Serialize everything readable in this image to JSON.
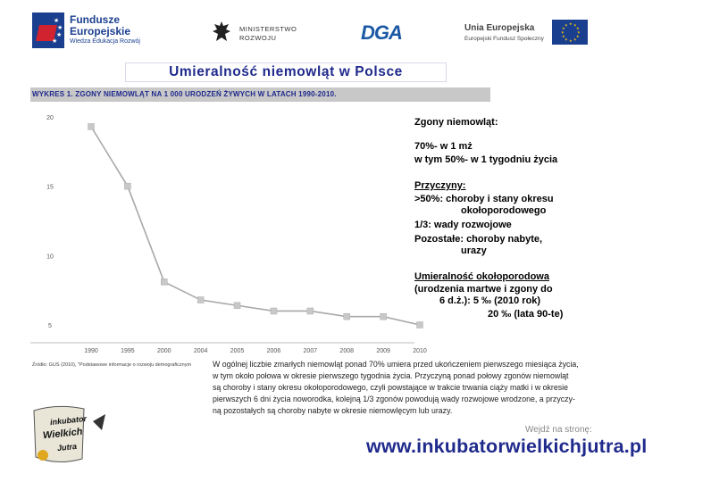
{
  "header": {
    "fe_line1": "Fundusze",
    "fe_line2": "Europejskie",
    "fe_line3": "Wiedza Edukacja Rozwój",
    "ministry_line1": "MINISTERSTWO",
    "ministry_line2": "ROZWOJU",
    "dga": "DGA",
    "ue_line1": "Unia Europejska",
    "ue_line2": "Europejski Fundusz Społeczny"
  },
  "slide_title": "Umieralność niemowląt w Polsce",
  "chart_data": {
    "type": "line",
    "title": "WYKRES 1. ZGONY NIEMOWLĄT NA 1 000 URODZEŃ ŻYWYCH W LATACH 1990-2010.",
    "categories": [
      "1990",
      "1995",
      "2000",
      "2004",
      "2005",
      "2006",
      "2007",
      "2008",
      "2009",
      "2010"
    ],
    "series": [
      {
        "values": [
          19.3,
          15.0,
          8.1,
          6.8,
          6.4,
          6.0,
          6.0,
          5.6,
          5.6,
          5.0
        ]
      }
    ],
    "ylim": [
      5,
      20
    ],
    "yticks": [
      "20",
      "15",
      "10",
      "5"
    ],
    "grid": false,
    "line_color": "#a8a8a8",
    "marker_color": "#c8c8c8"
  },
  "source": "Źródło: GUS (2010), \"Podstawowe informacje o rozwoju demograficznym",
  "right_panel": {
    "zgony_head": "Zgony niemowląt:",
    "zgony_1": "70%- w 1 mż",
    "zgony_2": "w tym 50%- w 1 tygodniu życia",
    "przyczyny_head": "Przyczyny:",
    "przyczyny_1": ">50%: choroby i stany okresu",
    "przyczyny_2": "okołoporodowego",
    "przyczyny_3": "1/3: wady rozwojowe",
    "przyczyny_4": "Pozostałe: choroby nabyte,",
    "przyczyny_5": "urazy",
    "umier_head": "Umieralność okołoporodowa",
    "umier_1": "(urodzenia martwe i zgony do",
    "umier_2": "6 d.ż.): 5 ‰ (2010 rok)",
    "umier_3": "20 ‰ (lata 90-te)"
  },
  "paragraph": [
    "W ogólnej liczbie zmarłych niemowląt ponad 70% umiera przed ukończeniem pierwszego miesiąca życia,",
    "w tym około połowa w okresie pierwszego tygodnia życia. Przyczyną ponad połowy zgonów niemowląt",
    "są choroby i stany okresu okołoporodowego, czyli powstające w trakcie trwania ciąży matki i w okresie",
    "pierwszych 6 dni życia noworodka, kolejną 1/3 zgonów powodują wady rozwojowe wrodzone, a przyczy-",
    "ną pozostałych są choroby nabyte w okresie niemowlęcym lub urazy."
  ],
  "footer": {
    "ink_line1": "inkubator",
    "ink_line2": "Wielkich",
    "ink_line3": "Jutra",
    "goto": "Wejdź na stronę:",
    "url": "www.inkubatorwielkichjutra.pl"
  }
}
